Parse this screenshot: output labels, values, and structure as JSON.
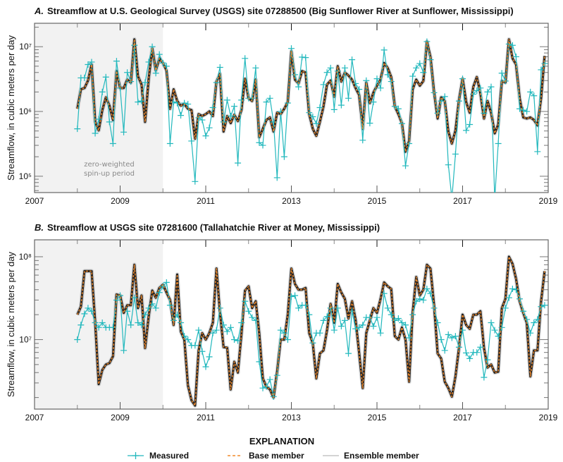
{
  "chart_data": [
    {
      "type": "line",
      "panel_letter": "A.",
      "title": "Streamflow at U.S. Geological Survey (USGS) site 07288500 (Big Sunflower River at Sunflower, Mississippi)",
      "ylabel": "Streamflow, in cubic meters per day",
      "xlabel": "",
      "x_tick_labels": [
        "2007",
        "2009",
        "2011",
        "2013",
        "2015",
        "2017",
        "2019"
      ],
      "y_tick_labels": [
        "10⁵",
        "10⁶",
        "10⁷"
      ],
      "y_scale": "log",
      "xlim": [
        2007,
        2019
      ],
      "ylim": [
        56000,
        23000000
      ],
      "shaded_region": {
        "from": 2007,
        "to": 2010,
        "label_line1": "zero-weighted",
        "label_line2": "spin-up period",
        "color": "#f2f2f2"
      },
      "series": [
        {
          "name": "Measured",
          "values": [
            540000.0,
            3300000.0,
            3300000.0,
            5300000.0,
            5800000.0,
            460000.0,
            760000.0,
            2000000.0,
            3400000.0,
            690000.0,
            320000.0,
            6000000.0,
            2300000.0,
            480000.0,
            4000000.0,
            2900000.0,
            10500000.0,
            1400000.0,
            1450000.0,
            2800000.0,
            5800000.0,
            10000000.0,
            3900000.0,
            7600000.0,
            5600000.0,
            5000000.0,
            320000.0,
            1400000.0,
            1350000.0,
            870000.0,
            1350000.0,
            1300000.0,
            350000.0,
            83000.0,
            800000.0,
            740000.0,
            420000.0,
            560000.0,
            1150000.0,
            2800000.0,
            4800000.0,
            690000.0,
            1500000.0,
            850000.0,
            1200000.0,
            160000.0,
            1500000.0,
            6600000.0,
            1600000.0,
            1600000.0,
            4700000.0,
            330000.0,
            300000.0,
            1400000.0,
            1600000.0,
            690000.0,
            95000.0,
            1000000.0,
            200000.0,
            1350000.0,
            9400000.0,
            3700000.0,
            2400000.0,
            6900000.0,
            6800000.0,
            960000.0,
            830000.0,
            650000.0,
            1150000.0,
            2600000.0,
            4000000.0,
            4700000.0,
            1070000.0,
            4200000.0,
            1250000.0,
            4700000.0,
            1600000.0,
            6300000.0,
            2700000.0,
            2200000.0,
            360000.0,
            3000000.0,
            660000.0,
            1400000.0,
            3200000.0,
            2300000.0,
            8900000.0,
            3700000.0,
            2900000.0,
            1200000.0,
            1100000.0,
            650000.0,
            145000.0,
            320000.0,
            3500000.0,
            4700000.0,
            5500000.0,
            4000000.0,
            12000000.0,
            6300000.0,
            1950000.0,
            940000.0,
            1450000.0,
            1700000.0,
            150000.0,
            45000.0,
            220000.0,
            1450000.0,
            3200000.0,
            510000.0,
            630000.0,
            1850000.0,
            2100000.0,
            2300000.0,
            940000.0,
            2000000.0,
            2400000.0,
            45000.0,
            320000.0,
            3900000.0,
            2950000.0,
            11000000.0,
            10500000.0,
            7000000.0,
            1100000.0,
            1050000.0,
            1000000.0,
            2000000.0,
            1750000.0,
            240000.0,
            4400000.0,
            5500000.0
          ]
        },
        {
          "name": "Base member",
          "values": [
            1100000.0,
            2200000.0,
            2300000.0,
            3000000.0,
            5300000.0,
            690000.0,
            510000.0,
            1050000.0,
            1650000.0,
            1230000.0,
            740000.0,
            4200000.0,
            2300000.0,
            2300000.0,
            3100000.0,
            2800000.0,
            13000000.0,
            3500000.0,
            2600000.0,
            690000.0,
            3200000.0,
            9400000.0,
            4300000.0,
            6600000.0,
            5600000.0,
            4300000.0,
            1100000.0,
            2200000.0,
            1450000.0,
            1230000.0,
            1300000.0,
            1100000.0,
            1050000.0,
            380000.0,
            910000.0,
            850000.0,
            910000.0,
            1000000.0,
            850000.0,
            2900000.0,
            3800000.0,
            490000.0,
            850000.0,
            660000.0,
            890000.0,
            710000.0,
            1050000.0,
            3200000.0,
            1600000.0,
            1450000.0,
            3100000.0,
            400000.0,
            540000.0,
            740000.0,
            810000.0,
            490000.0,
            960000.0,
            910000.0,
            1100000.0,
            1400000.0,
            8500000.0,
            3100000.0,
            2700000.0,
            4200000.0,
            4000000.0,
            910000.0,
            540000.0,
            420000.0,
            690000.0,
            1200000.0,
            2600000.0,
            3000000.0,
            1700000.0,
            5000000.0,
            2900000.0,
            4000000.0,
            3600000.0,
            3100000.0,
            2300000.0,
            1800000.0,
            540000.0,
            2800000.0,
            1350000.0,
            1950000.0,
            2500000.0,
            3100000.0,
            5600000.0,
            4700000.0,
            3400000.0,
            1200000.0,
            910000.0,
            660000.0,
            240000.0,
            350000.0,
            2200000.0,
            3100000.0,
            2500000.0,
            2950000.0,
            12000000.0,
            6900000.0,
            2000000.0,
            780000.0,
            1650000.0,
            1450000.0,
            490000.0,
            320000.0,
            510000.0,
            1500000.0,
            3200000.0,
            1400000.0,
            960000.0,
            2400000.0,
            3400000.0,
            1900000.0,
            780000.0,
            1450000.0,
            960000.0,
            460000.0,
            630000.0,
            2950000.0,
            2800000.0,
            13000000.0,
            6600000.0,
            5300000.0,
            1600000.0,
            810000.0,
            780000.0,
            810000.0,
            740000.0,
            610000.0,
            1600000.0,
            7200000.0
          ]
        }
      ]
    },
    {
      "type": "line",
      "panel_letter": "B.",
      "title": "Streamflow at USGS site 07281600 (Tallahatchie River at Money, Mississippi)",
      "ylabel": "Streamflow, in cubic meters per day",
      "xlabel": "",
      "x_tick_labels": [
        "2007",
        "2009",
        "2011",
        "2013",
        "2015",
        "2017",
        "2019"
      ],
      "y_tick_labels": [
        "10⁷",
        "10⁸"
      ],
      "y_scale": "log",
      "xlim": [
        2007,
        2019
      ],
      "ylim": [
        1450000,
        160000000
      ],
      "shaded_region": {
        "from": 2007,
        "to": 2010,
        "color": "#f2f2f2"
      },
      "series": [
        {
          "name": "Measured",
          "values": [
            10000000.0,
            15000000.0,
            20500000.0,
            24000000.0,
            22000000.0,
            16000000.0,
            14000000.0,
            16000000.0,
            14000000.0,
            14000000.0,
            14000000.0,
            30000000.0,
            34000000.0,
            7400000.0,
            22000000.0,
            15000000.0,
            32000000.0,
            16000000.0,
            15000000.0,
            20000000.0,
            24000000.0,
            27000000.0,
            24000000.0,
            37000000.0,
            44000000.0,
            49000000.0,
            26000000.0,
            17000000.0,
            20000000.0,
            16000000.0,
            11000000.0,
            10000000.0,
            8500000.0,
            8500000.0,
            13000000.0,
            7200000.0,
            4700000.0,
            6200000.0,
            12000000.0,
            13000000.0,
            24000000.0,
            15000000.0,
            12500000.0,
            14000000.0,
            10000000.0,
            9700000.0,
            16000000.0,
            29000000.0,
            22000000.0,
            18500000.0,
            17000000.0,
            5400000.0,
            2600000.0,
            2700000.0,
            3300000.0,
            2050000.0,
            3700000.0,
            13000000.0,
            12000000.0,
            10000000.0,
            33000000.0,
            34000000.0,
            24000000.0,
            26000000.0,
            26000000.0,
            20000000.0,
            9100000.0,
            12000000.0,
            12000000.0,
            17000000.0,
            19000000.0,
            24000000.0,
            13000000.0,
            24000000.0,
            14500000.0,
            17000000.0,
            6800000.0,
            22000000.0,
            13500000.0,
            14000000.0,
            15000000.0,
            18500000.0,
            18500000.0,
            14500000.0,
            18500000.0,
            12000000.0,
            36000000.0,
            24000000.0,
            20000000.0,
            17000000.0,
            18000000.0,
            16000000.0,
            15000000.0,
            10500000.0,
            20000000.0,
            29000000.0,
            31000000.0,
            30000000.0,
            41000000.0,
            36000000.0,
            24000000.0,
            16000000.0,
            10000000.0,
            7400000.0,
            11500000.0,
            10500000.0,
            11000000.0,
            8100000.0,
            13000000.0,
            6900000.0,
            5900000.0,
            7000000.0,
            7000000.0,
            8100000.0,
            3500000.0,
            5700000.0,
            16000000.0,
            13000000.0,
            11000000.0,
            14000000.0,
            24000000.0,
            32000000.0,
            41000000.0,
            40000000.0,
            31000000.0,
            22000000.0,
            17500000.0,
            12000000.0,
            16000000.0,
            17500000.0,
            25000000.0,
            26000000.0
          ]
        },
        {
          "name": "Base member",
          "values": [
            20000000.0,
            25000000.0,
            67000000.0,
            67000000.0,
            67000000.0,
            16000000.0,
            2900000.0,
            4300000.0,
            5000000.0,
            5200000.0,
            6300000.0,
            35000000.0,
            34000000.0,
            21000000.0,
            26000000.0,
            26000000.0,
            80000000.0,
            24000000.0,
            34000000.0,
            7900000.0,
            19000000.0,
            39000000.0,
            32000000.0,
            42000000.0,
            46000000.0,
            37000000.0,
            30000000.0,
            15000000.0,
            61000000.0,
            12500000.0,
            10000000.0,
            2800000.0,
            1850000.0,
            1600000.0,
            7400000.0,
            12000000.0,
            10000000.0,
            12000000.0,
            16000000.0,
            72000000.0,
            21000000.0,
            8100000.0,
            8000000.0,
            2500000.0,
            5400000.0,
            4000000.0,
            11500000.0,
            39000000.0,
            44000000.0,
            24000000.0,
            29000000.0,
            12000000.0,
            3400000.0,
            2700000.0,
            2500000.0,
            2000000.0,
            4100000.0,
            10000000.0,
            10000000.0,
            20000000.0,
            72000000.0,
            47000000.0,
            40000000.0,
            40000000.0,
            42000000.0,
            12000000.0,
            9100000.0,
            3400000.0,
            6800000.0,
            7400000.0,
            13000000.0,
            27000000.0,
            16000000.0,
            47000000.0,
            37000000.0,
            31000000.0,
            18000000.0,
            29000000.0,
            17500000.0,
            6900000.0,
            2600000.0,
            12000000.0,
            17000000.0,
            24000000.0,
            21000000.0,
            31000000.0,
            49000000.0,
            44000000.0,
            41000000.0,
            11000000.0,
            10000000.0,
            14000000.0,
            10000000.0,
            3100000.0,
            21000000.0,
            57000000.0,
            34000000.0,
            40000000.0,
            80000000.0,
            72000000.0,
            26000000.0,
            6800000.0,
            5900000.0,
            3100000.0,
            2600000.0,
            2050000.0,
            3600000.0,
            7900000.0,
            20000000.0,
            15000000.0,
            13500000.0,
            20000000.0,
            20000000.0,
            22000000.0,
            7900000.0,
            4600000.0,
            5000000.0,
            4000000.0,
            4100000.0,
            24000000.0,
            31000000.0,
            100000000.0,
            82000000.0,
            54000000.0,
            29000000.0,
            21000000.0,
            16000000.0,
            3600000.0,
            7400000.0,
            7400000.0,
            29000000.0,
            67000000.0
          ]
        }
      ]
    }
  ],
  "dates": {
    "first_month": "2008-01",
    "last_month": "2018-12",
    "frequency": "monthly"
  },
  "colors": {
    "measured": "#22b8bd",
    "base_member": "#f28a2a",
    "ensemble_member": "#222222",
    "spin_up_shading": "#f2f2f2"
  },
  "legend": {
    "title": "EXPLANATION",
    "items": [
      {
        "label": "Measured",
        "icon": "line-with-plus-marker"
      },
      {
        "label": "Base member",
        "icon": "dashed-line"
      },
      {
        "label": "Ensemble member",
        "icon": "thin-gray-line"
      }
    ]
  }
}
